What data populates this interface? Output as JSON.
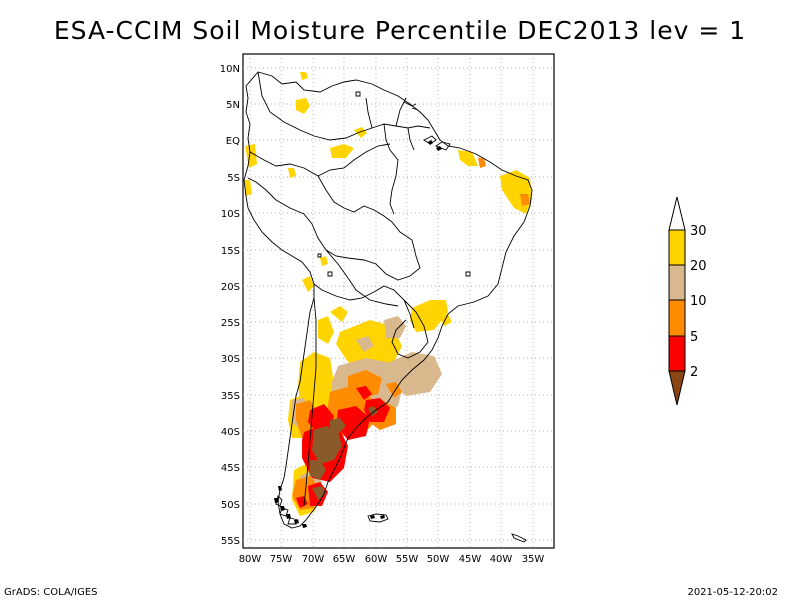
{
  "title": "ESA-CCIM Soil Moisture Percentile DEC2013 lev = 1",
  "footer_left": "GrADS: COLA/IGES",
  "footer_right": "2021-05-12-20:02",
  "map": {
    "lon_range": [
      -80,
      -34
    ],
    "lat_range": [
      -56,
      11
    ],
    "lat_labels": [
      "10N",
      "5N",
      "EQ",
      "5S",
      "10S",
      "15S",
      "20S",
      "25S",
      "30S",
      "35S",
      "40S",
      "45S",
      "50S",
      "55S"
    ],
    "lon_labels": [
      "80W",
      "75W",
      "70W",
      "65W",
      "60W",
      "55W",
      "50W",
      "45W",
      "40W",
      "35W"
    ],
    "grid": true
  },
  "colorbar": {
    "labels": [
      "30",
      "20",
      "10",
      "5",
      "2"
    ],
    "colors": [
      "#ffffff",
      "#ffd400",
      "#d8b88c",
      "#ff8c00",
      "#ff0000",
      "#8b4513"
    ]
  }
}
